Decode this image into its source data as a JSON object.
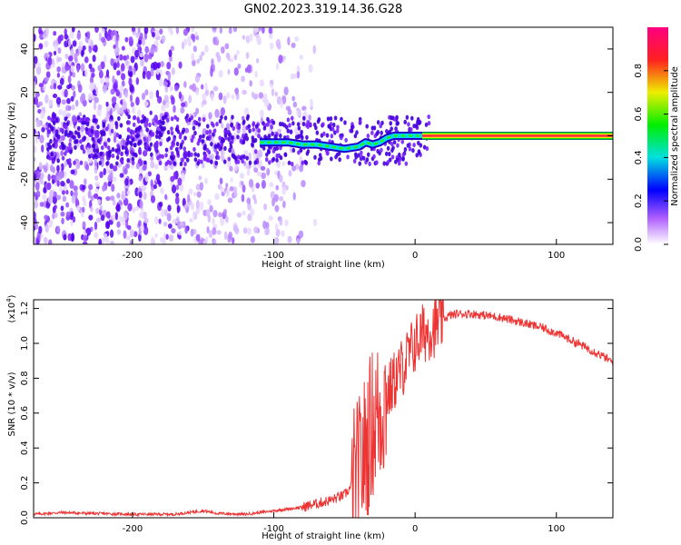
{
  "title": "GN02.2023.319.14.36.G28",
  "chart_data": [
    {
      "type": "heatmap",
      "xlabel": "Height of straight line (km)",
      "ylabel": "Frequency (Hz)",
      "xlim": [
        -270,
        140
      ],
      "ylim": [
        -50,
        50
      ],
      "xticks": [
        -200,
        -100,
        0,
        100
      ],
      "yticks": [
        -40,
        -20,
        0,
        20,
        40
      ],
      "colorbar": {
        "label": "Normalized spectral amplitude",
        "range": [
          0.0,
          1.0
        ],
        "ticks": [
          0.0,
          0.2,
          0.4,
          0.6,
          0.8
        ]
      },
      "ridge": {
        "x": [
          -110,
          -100,
          -90,
          -80,
          -70,
          -60,
          -50,
          -40,
          -35,
          -30,
          -25,
          -20,
          -15,
          -10,
          -5,
          0,
          5,
          10,
          50,
          100,
          140
        ],
        "y": [
          -3,
          -3,
          -3,
          -4,
          -4,
          -5,
          -6,
          -5,
          -3,
          -4,
          -3,
          -1,
          0,
          0,
          0,
          0,
          0,
          0,
          0,
          0,
          0
        ]
      }
    },
    {
      "type": "line",
      "xlabel": "Height of straight line (km)",
      "ylabel": "SNR (10 * v/v)",
      "yscale_label": "(x10",
      "yscale_exp": "4",
      "yscale_close": ")",
      "xlim": [
        -270,
        140
      ],
      "ylim": [
        0.0,
        1.25
      ],
      "xticks": [
        -200,
        -100,
        0,
        100
      ],
      "yticks": [
        0.0,
        0.2,
        0.4,
        0.6,
        0.8,
        1.0,
        1.2
      ],
      "ytick_labels": [
        "0.0",
        "0.2",
        "0.4",
        "0.6",
        "0.8",
        "1.0",
        "1.2"
      ],
      "series": [
        {
          "name": "SNR",
          "color": "#ee3333",
          "x": [
            -270,
            -250,
            -230,
            -200,
            -170,
            -150,
            -140,
            -120,
            -100,
            -90,
            -80,
            -70,
            -60,
            -50,
            -45,
            -40,
            -35,
            -30,
            -25,
            -20,
            -15,
            -10,
            -5,
            0,
            5,
            10,
            15,
            20,
            25,
            30,
            35,
            40,
            50,
            60,
            70,
            80,
            90,
            100,
            110,
            120,
            130,
            140
          ],
          "values": [
            0.02,
            0.03,
            0.025,
            0.02,
            0.02,
            0.04,
            0.025,
            0.02,
            0.04,
            0.05,
            0.06,
            0.08,
            0.1,
            0.13,
            0.18,
            0.25,
            0.4,
            0.55,
            0.6,
            0.7,
            0.78,
            0.85,
            0.92,
            1.0,
            1.05,
            1.08,
            1.1,
            1.14,
            1.16,
            1.17,
            1.17,
            1.17,
            1.16,
            1.15,
            1.13,
            1.11,
            1.09,
            1.06,
            1.02,
            0.98,
            0.94,
            0.89
          ]
        }
      ]
    }
  ]
}
